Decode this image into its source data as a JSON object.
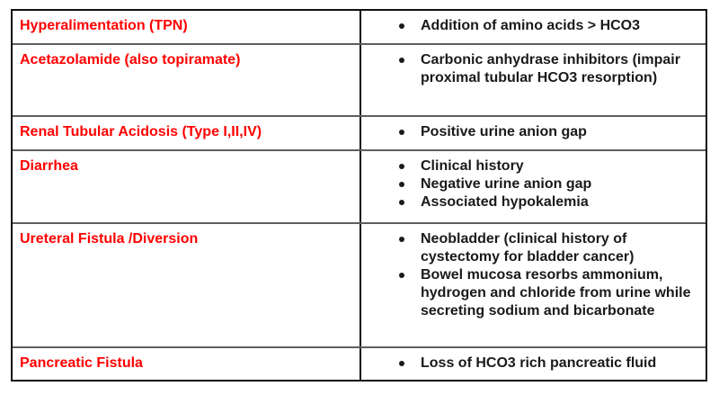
{
  "table": {
    "rows": [
      {
        "condition": "Hyperalimentation (TPN)",
        "findings": [
          "Addition of amino acids > HCO3"
        ]
      },
      {
        "condition": "Acetazolamide (also topiramate)",
        "findings": [
          "Carbonic anhydrase inhibitors (impair proximal tubular HCO3 resorption)"
        ]
      },
      {
        "condition": "Renal Tubular Acidosis (Type I,II,IV)",
        "findings": [
          "Positive urine anion gap"
        ]
      },
      {
        "condition": "Diarrhea",
        "findings": [
          "Clinical history",
          "Negative urine anion gap",
          "Associated hypokalemia"
        ]
      },
      {
        "condition": "Ureteral Fistula /Diversion",
        "findings": [
          "Neobladder (clinical history of cystectomy for bladder cancer)",
          "Bowel mucosa resorbs ammonium, hydrogen and chloride from urine while secreting sodium and bicarbonate"
        ]
      },
      {
        "condition": "Pancreatic Fistula",
        "findings": [
          "Loss of HCO3 rich pancreatic fluid"
        ]
      }
    ],
    "colors": {
      "condition_text": "#ff0000",
      "finding_text": "#1a1a1a",
      "border": "#111111",
      "row_divider": "#5e5e5e",
      "background": "#ffffff"
    }
  }
}
